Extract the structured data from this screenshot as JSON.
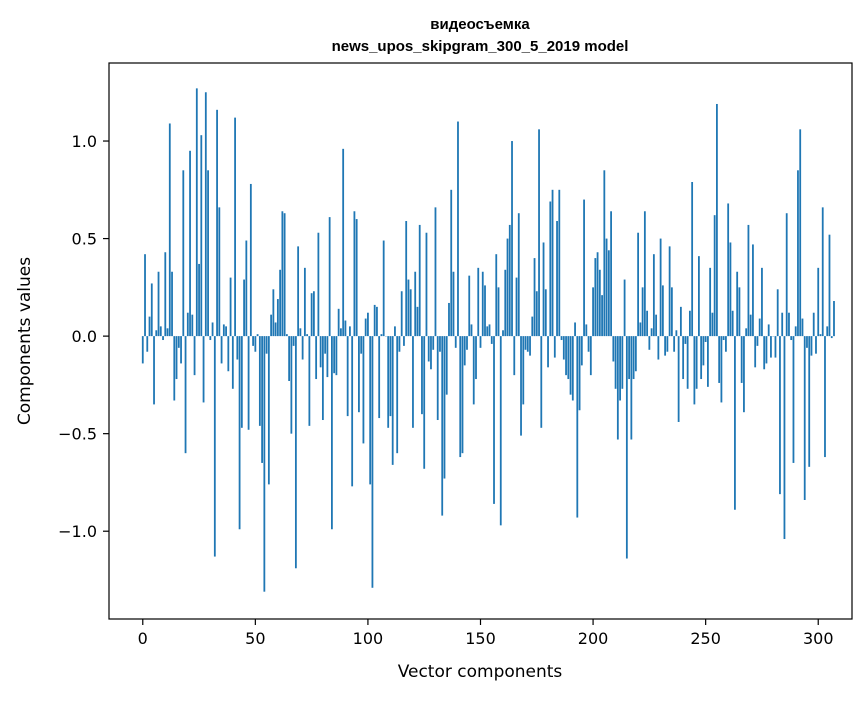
{
  "chart_data": {
    "type": "bar",
    "title_line1": "видеосъемка",
    "title_line2": "news_upos_skipgram_300_5_2019 model",
    "xlabel": "Vector components",
    "ylabel": "Components values",
    "xlim": [
      -15,
      315
    ],
    "ylim": [
      -1.45,
      1.4
    ],
    "xticks": [
      0,
      50,
      100,
      150,
      200,
      250,
      300
    ],
    "yticks": [
      -1.0,
      -0.5,
      0.0,
      0.5,
      1.0
    ],
    "xtick_labels": [
      "0",
      "50",
      "100",
      "150",
      "200",
      "250",
      "300"
    ],
    "ytick_labels": [
      "−1.0",
      "−0.5",
      "0.0",
      "0.5",
      "1.0"
    ],
    "bar_color": "#1f77b4",
    "values": [
      -0.14,
      0.42,
      -0.08,
      0.1,
      0.27,
      -0.35,
      0.03,
      0.33,
      0.05,
      -0.02,
      0.43,
      0.04,
      1.09,
      0.33,
      -0.33,
      -0.22,
      -0.06,
      -0.14,
      0.85,
      -0.6,
      0.12,
      0.95,
      0.11,
      -0.2,
      1.27,
      0.37,
      1.03,
      -0.34,
      1.25,
      0.85,
      -0.02,
      0.07,
      -1.13,
      1.16,
      0.66,
      -0.14,
      0.06,
      0.05,
      -0.18,
      0.3,
      -0.27,
      1.12,
      -0.12,
      -0.99,
      -0.47,
      0.29,
      0.49,
      -0.48,
      0.78,
      -0.05,
      -0.08,
      0.01,
      -0.46,
      -0.65,
      -1.31,
      -0.09,
      -0.76,
      0.11,
      0.24,
      0.07,
      0.19,
      0.34,
      0.64,
      0.63,
      0.01,
      -0.23,
      -0.5,
      -0.05,
      -1.19,
      0.46,
      0.04,
      -0.12,
      0.35,
      0.01,
      -0.46,
      0.22,
      0.23,
      -0.22,
      0.53,
      -0.16,
      -0.43,
      -0.09,
      -0.21,
      0.61,
      -0.99,
      -0.19,
      -0.2,
      0.14,
      0.04,
      0.96,
      0.08,
      -0.41,
      0.05,
      -0.77,
      0.64,
      0.6,
      -0.39,
      -0.09,
      -0.55,
      0.09,
      0.12,
      -0.76,
      -1.29,
      0.16,
      0.15,
      -0.42,
      0.01,
      0.49,
      0.0,
      -0.47,
      -0.41,
      -0.66,
      0.05,
      -0.6,
      -0.08,
      0.23,
      -0.05,
      0.59,
      0.29,
      0.24,
      -0.47,
      0.33,
      0.15,
      0.57,
      -0.4,
      -0.68,
      0.53,
      -0.13,
      -0.17,
      -0.07,
      0.66,
      -0.43,
      -0.08,
      -0.92,
      -0.73,
      -0.3,
      0.17,
      0.75,
      0.33,
      -0.06,
      1.1,
      -0.62,
      -0.6,
      -0.15,
      -0.07,
      0.31,
      0.06,
      -0.35,
      -0.22,
      0.35,
      -0.06,
      0.33,
      0.26,
      0.05,
      0.06,
      -0.04,
      -0.86,
      0.42,
      0.25,
      -0.97,
      0.03,
      0.34,
      0.5,
      0.57,
      1.0,
      -0.2,
      0.3,
      0.63,
      -0.51,
      -0.35,
      -0.07,
      -0.08,
      -0.1,
      0.1,
      0.4,
      0.23,
      1.06,
      -0.47,
      0.48,
      0.24,
      -0.16,
      0.69,
      0.75,
      -0.11,
      0.59,
      0.75,
      -0.02,
      -0.12,
      -0.2,
      -0.22,
      -0.3,
      -0.33,
      0.07,
      -0.93,
      -0.38,
      -0.15,
      0.7,
      0.06,
      -0.08,
      -0.2,
      0.25,
      0.4,
      0.43,
      0.34,
      0.21,
      0.85,
      0.5,
      0.44,
      0.64,
      -0.13,
      -0.27,
      -0.53,
      -0.33,
      -0.27,
      0.29,
      -1.14,
      -0.22,
      -0.53,
      -0.22,
      -0.18,
      0.53,
      0.07,
      0.25,
      0.64,
      0.13,
      -0.07,
      0.04,
      0.42,
      0.11,
      -0.12,
      0.5,
      0.26,
      -0.1,
      -0.08,
      0.46,
      0.25,
      -0.08,
      0.03,
      -0.44,
      0.15,
      -0.22,
      -0.04,
      -0.27,
      0.13,
      0.79,
      -0.35,
      -0.27,
      0.41,
      -0.22,
      -0.15,
      -0.03,
      -0.26,
      0.35,
      0.12,
      0.62,
      1.19,
      -0.24,
      -0.34,
      -0.02,
      -0.08,
      0.68,
      0.48,
      0.13,
      -0.89,
      0.33,
      0.25,
      -0.24,
      -0.39,
      0.04,
      0.57,
      0.11,
      0.47,
      -0.16,
      -0.05,
      0.09,
      0.35,
      -0.17,
      -0.14,
      0.06,
      -0.11,
      0.0,
      -0.11,
      0.24,
      -0.81,
      0.12,
      -1.04,
      0.63,
      0.12,
      -0.02,
      -0.65,
      0.05,
      0.85,
      1.06,
      0.09,
      -0.84,
      -0.06,
      -0.67,
      -0.1,
      0.12,
      -0.09,
      0.35,
      0.01,
      0.66,
      -0.62,
      0.05,
      0.52,
      -0.01,
      0.18
    ]
  }
}
